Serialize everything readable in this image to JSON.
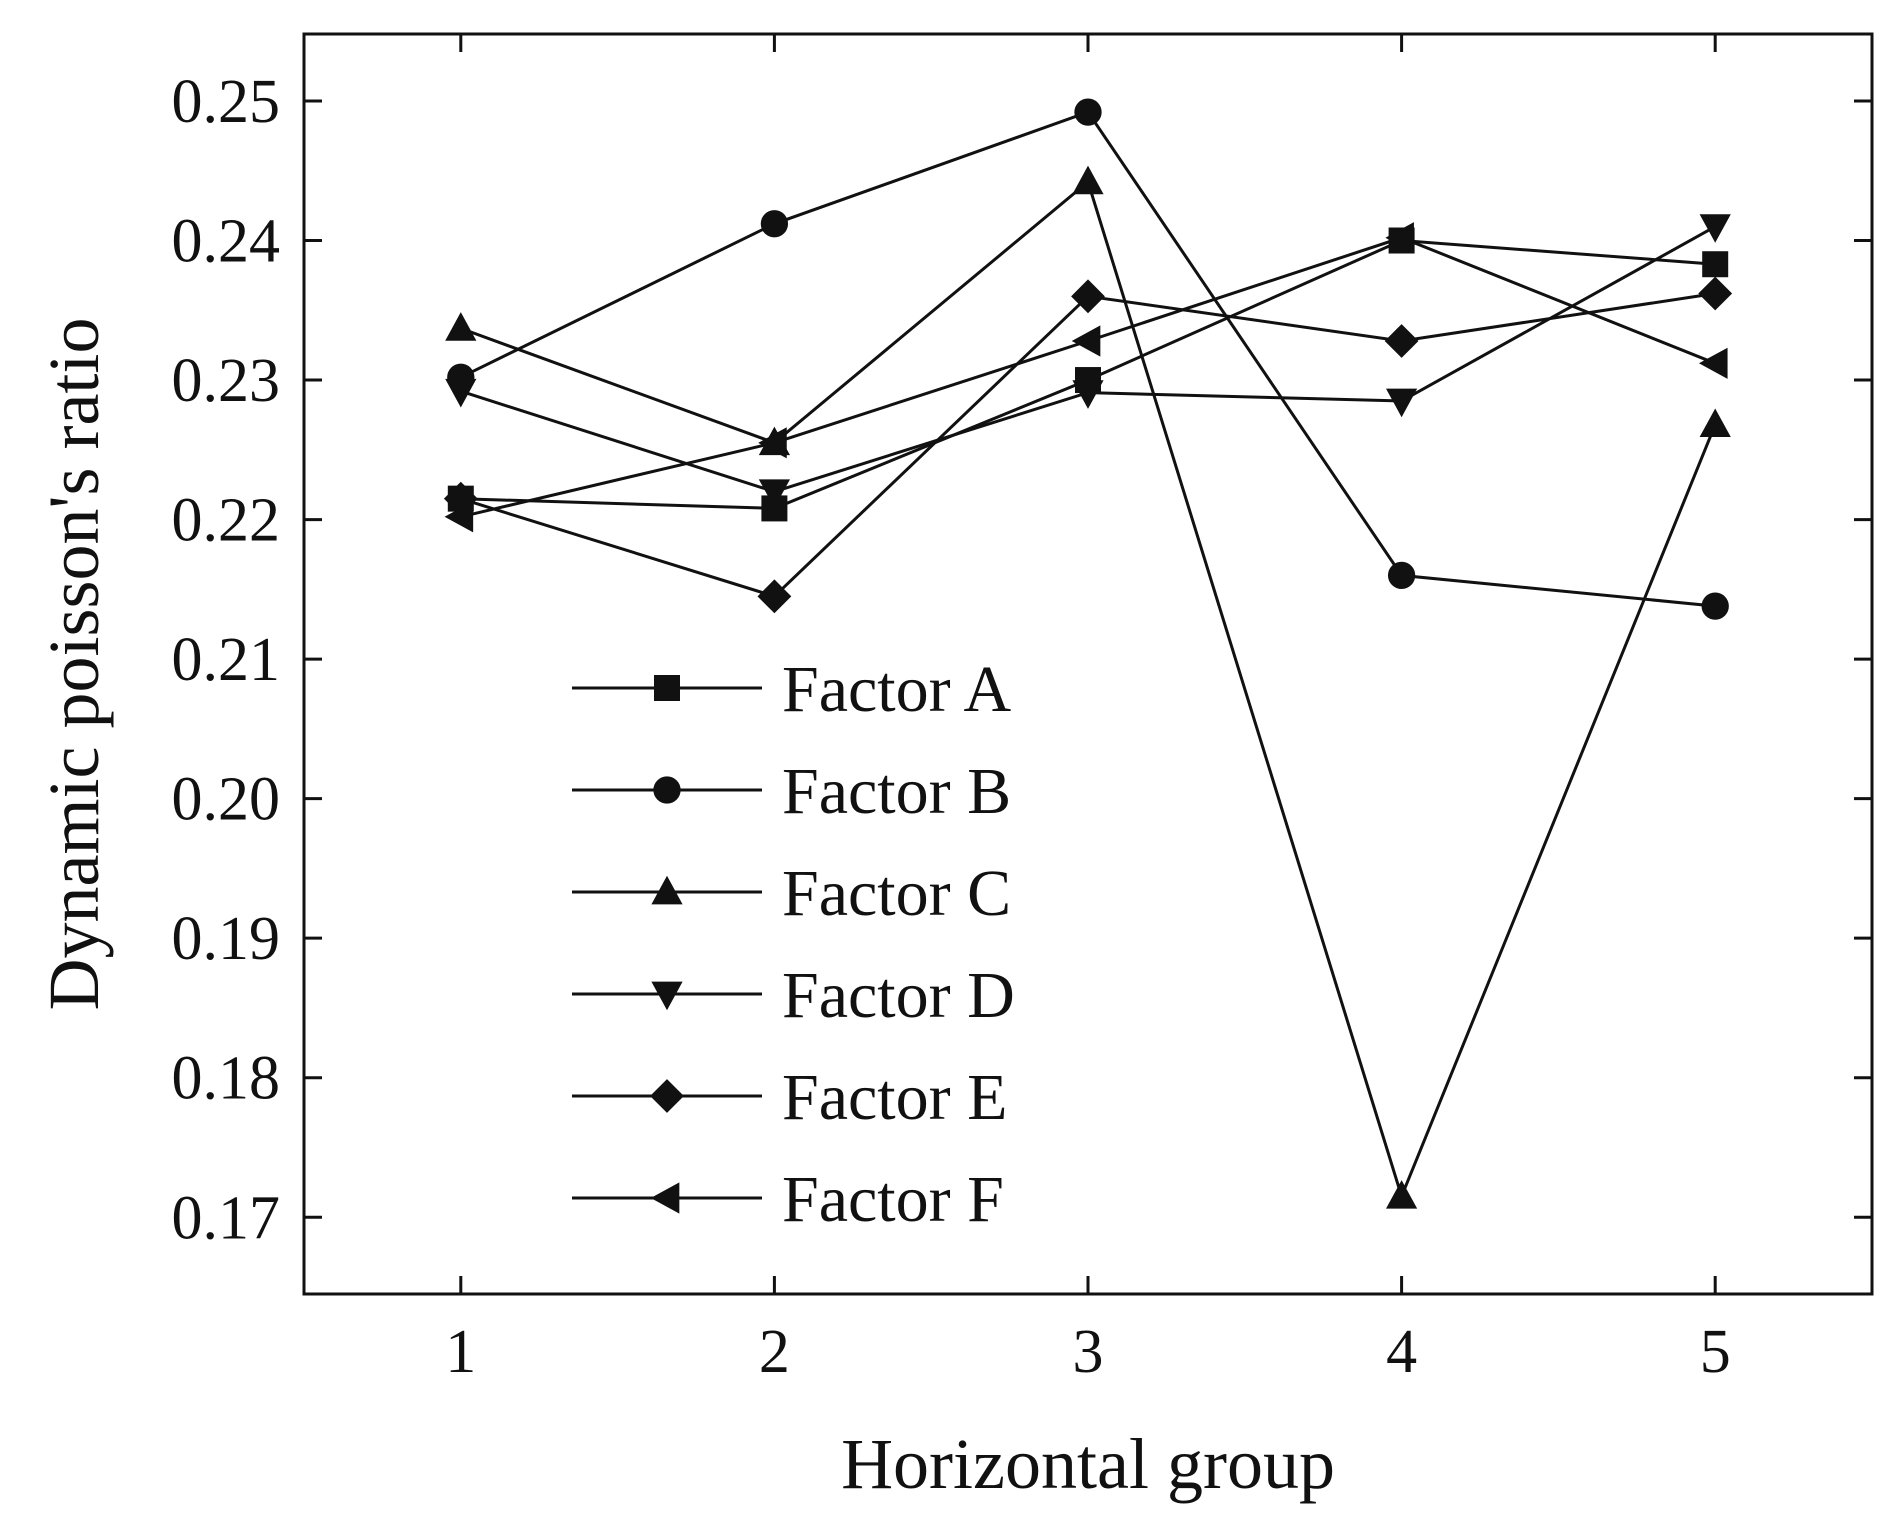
{
  "chart_data": {
    "type": "line",
    "title": "",
    "xlabel": "Horizontal group",
    "ylabel": "Dynamic poisson's ratio",
    "x": [
      1,
      2,
      3,
      4,
      5
    ],
    "x_ticks": [
      "1",
      "2",
      "3",
      "4",
      "5"
    ],
    "y_ticks": [
      "0.17",
      "0.18",
      "0.19",
      "0.20",
      "0.21",
      "0.22",
      "0.23",
      "0.24",
      "0.25"
    ],
    "xlim": [
      0.5,
      5.5
    ],
    "ylim": [
      0.1645,
      0.2548
    ],
    "grid": false,
    "legend_position": "lower-left inside plot",
    "line_color": "#111111",
    "series": [
      {
        "name": "Factor A",
        "marker": "square",
        "values": [
          0.2215,
          0.2208,
          0.23,
          0.24,
          0.2383
        ]
      },
      {
        "name": "Factor B",
        "marker": "circle",
        "values": [
          0.2302,
          0.2412,
          0.2492,
          0.216,
          0.2138
        ]
      },
      {
        "name": "Factor C",
        "marker": "triangle-up",
        "values": [
          0.2337,
          0.2255,
          0.2442,
          0.1715,
          0.2268
        ]
      },
      {
        "name": "Factor D",
        "marker": "triangle-down",
        "values": [
          0.2292,
          0.222,
          0.2291,
          0.2285,
          0.241
        ]
      },
      {
        "name": "Factor E",
        "marker": "diamond",
        "values": [
          0.2215,
          0.2145,
          0.236,
          0.2328,
          0.2362
        ]
      },
      {
        "name": "Factor F",
        "marker": "triangle-left",
        "values": [
          0.2202,
          0.2255,
          0.2328,
          0.2402,
          0.2312
        ]
      }
    ]
  }
}
